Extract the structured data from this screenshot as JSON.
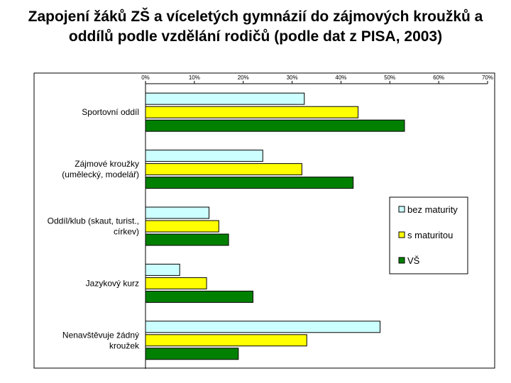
{
  "chart_data": {
    "type": "bar",
    "orientation": "horizontal",
    "title": "Zapojení žáků ZŠ a víceletých gymnázií do zájmových kroužků a oddílů podle vzdělání rodičů (podle dat z PISA, 2003)",
    "categories": [
      [
        "Sportovní oddíl"
      ],
      [
        "Zájmové kroužky",
        "(umělecký, modelář)"
      ],
      [
        "Oddíl/klub (skaut, turist.,",
        "církev)"
      ],
      [
        "Jazykový kurz"
      ],
      [
        "Nenavštěvuje žádný",
        "kroužek"
      ]
    ],
    "series": [
      {
        "name": "bez maturity",
        "color": "#ccffff",
        "values": [
          32.5,
          24,
          13,
          7,
          48
        ]
      },
      {
        "name": "s maturitou",
        "color": "#ffff00",
        "values": [
          43.5,
          32,
          15,
          12.5,
          33
        ]
      },
      {
        "name": "VŠ",
        "color": "#008000",
        "values": [
          53,
          42.5,
          17,
          22,
          19
        ]
      }
    ],
    "x_ticks": [
      "0%",
      "10%",
      "20%",
      "30%",
      "40%",
      "50%",
      "60%",
      "70%"
    ],
    "xlim": [
      0,
      70
    ],
    "legend_position": "right",
    "grid": false
  }
}
